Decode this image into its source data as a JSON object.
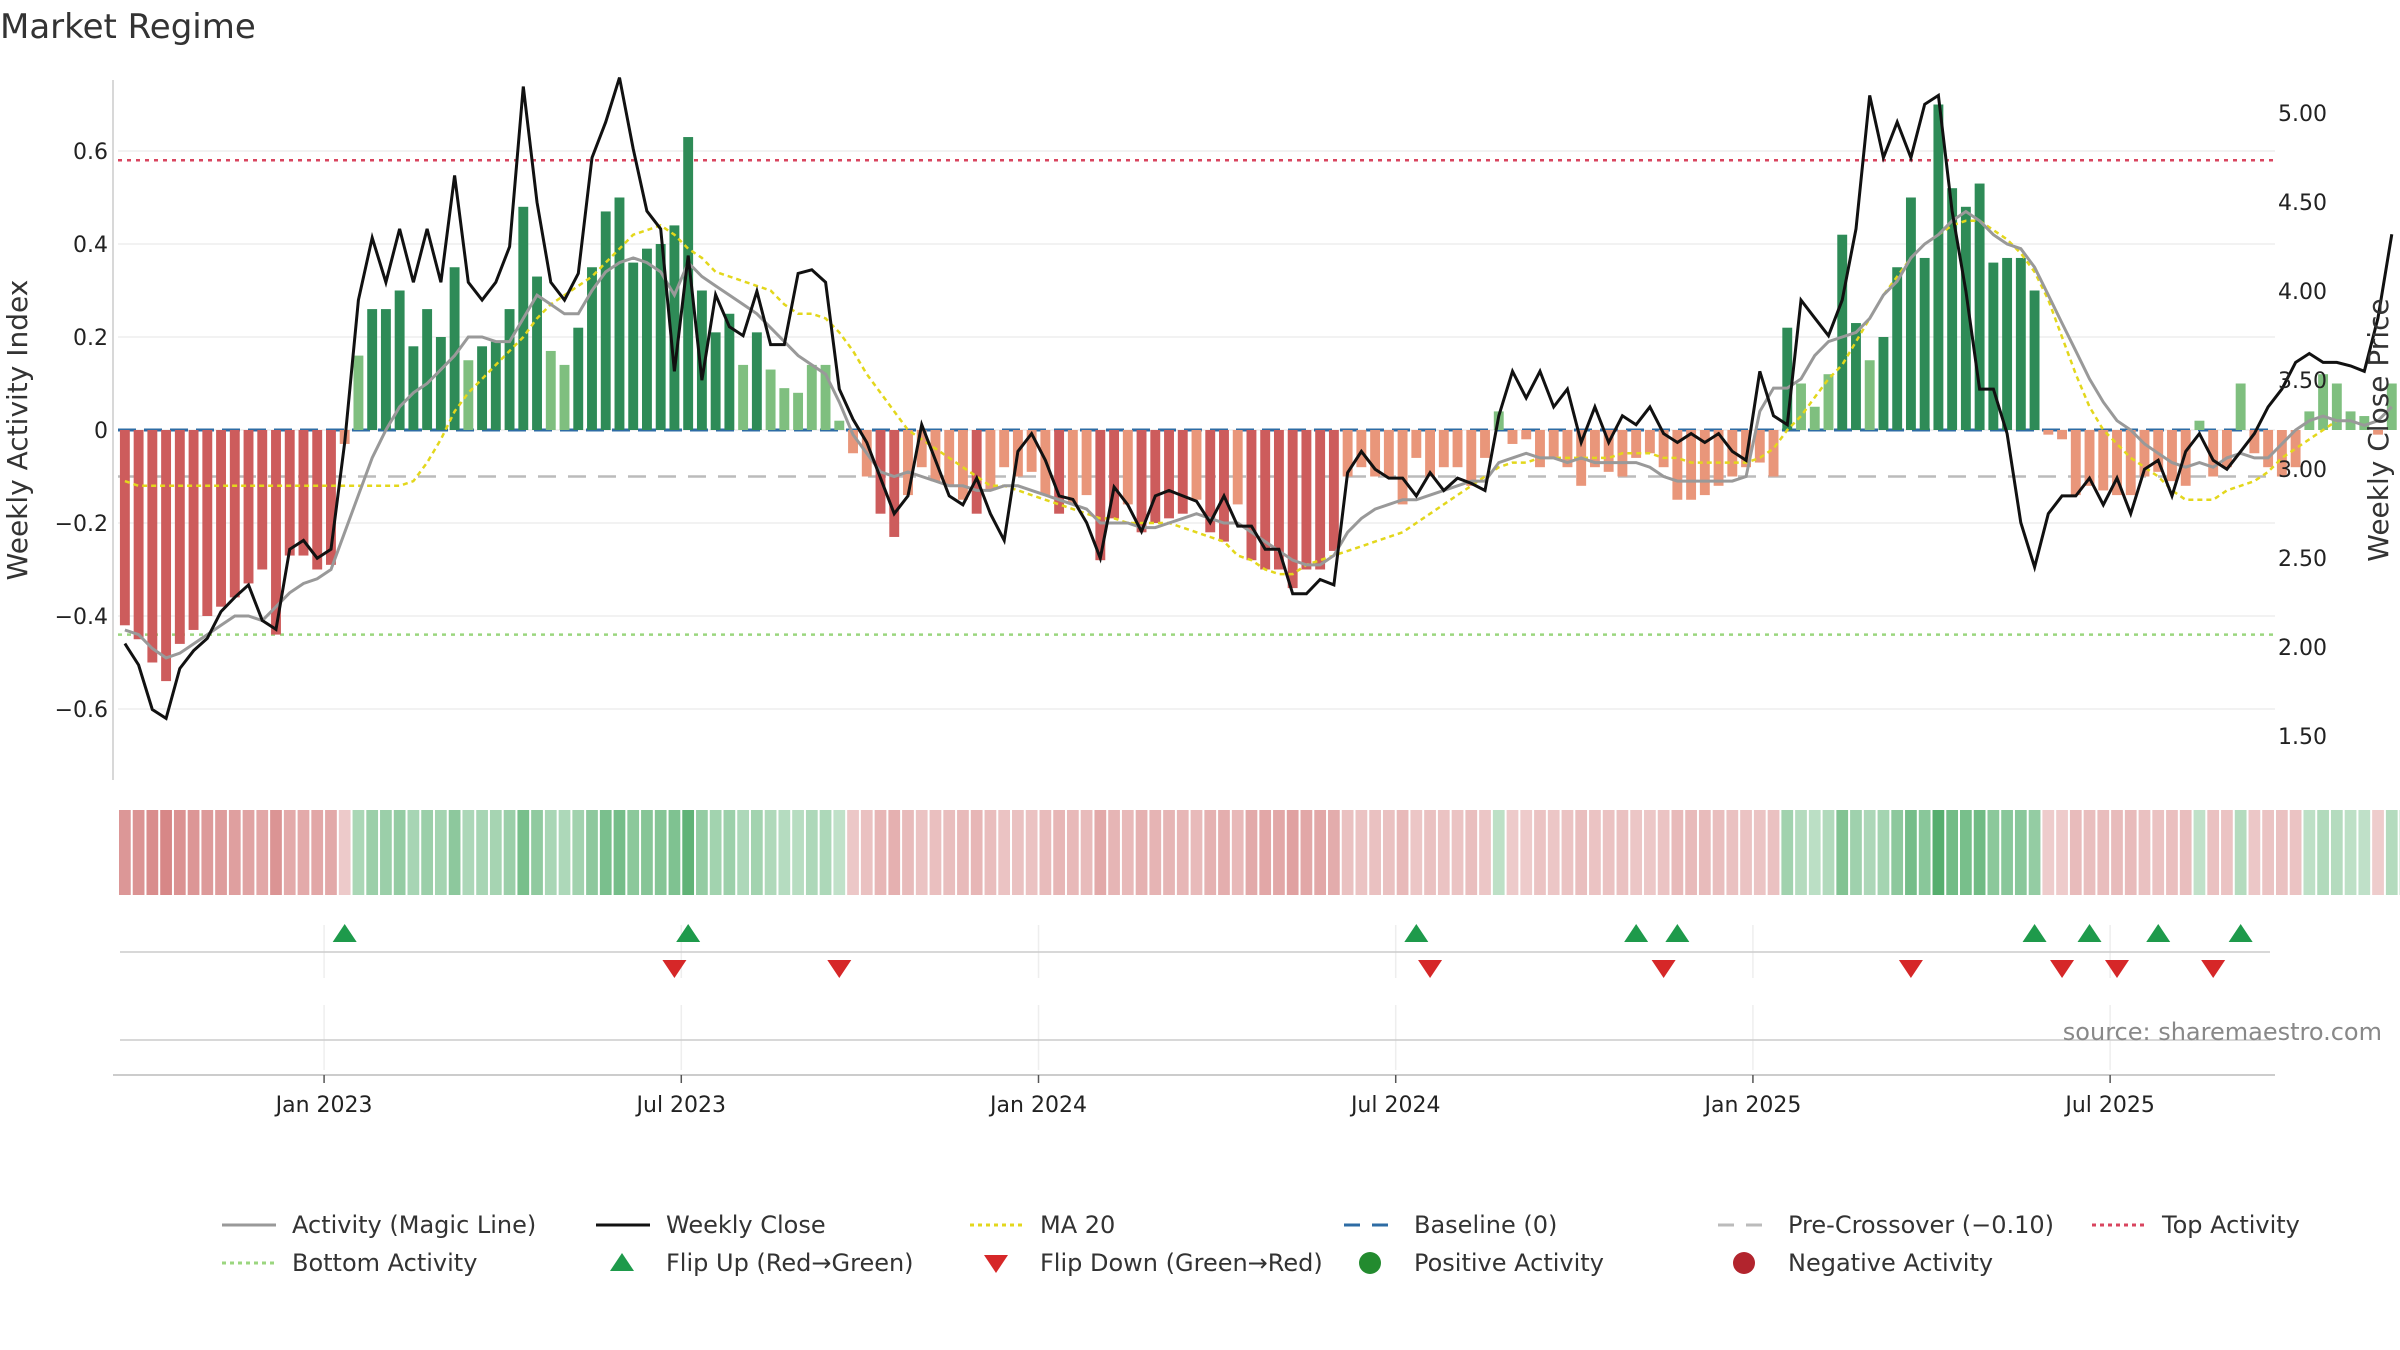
{
  "chart_data": {
    "type": "bar",
    "title": "Market Regime",
    "ylabel_left": "Weekly Activity Index",
    "ylabel_right": "Weekly Close Price",
    "source": "source: sharemaestro.com",
    "grid": true,
    "legend_position": "bottom",
    "ylim_left": [
      -0.75,
      0.75
    ],
    "ylim_right": [
      1.5,
      5.25
    ],
    "yticks_left": [
      {
        "v": 0.6,
        "label": "0.6"
      },
      {
        "v": 0.4,
        "label": "0.4"
      },
      {
        "v": 0.2,
        "label": "0.2"
      },
      {
        "v": 0,
        "label": "0"
      },
      {
        "v": -0.2,
        "label": "−0.2"
      },
      {
        "v": -0.4,
        "label": "−0.4"
      },
      {
        "v": -0.6,
        "label": "−0.6"
      }
    ],
    "yticks_right": [
      {
        "v": 5.0,
        "label": "5.00"
      },
      {
        "v": 4.5,
        "label": "4.50"
      },
      {
        "v": 4.0,
        "label": "4.00"
      },
      {
        "v": 3.5,
        "label": "3.50"
      },
      {
        "v": 3.0,
        "label": "3.00"
      },
      {
        "v": 2.5,
        "label": "2.50"
      },
      {
        "v": 2.0,
        "label": "2.00"
      },
      {
        "v": 1.5,
        "label": "1.50"
      }
    ],
    "x_start_week": 0,
    "weeks": 157,
    "x_ticks": [
      {
        "week": 14.5,
        "label": "Jan 2023"
      },
      {
        "week": 40.5,
        "label": "Jul 2023"
      },
      {
        "week": 66.5,
        "label": "Jan 2024"
      },
      {
        "week": 92.5,
        "label": "Jul 2024"
      },
      {
        "week": 118.5,
        "label": "Jan 2025"
      },
      {
        "week": 144.5,
        "label": "Jul 2025"
      }
    ],
    "activity": [
      -0.42,
      -0.45,
      -0.5,
      -0.54,
      -0.46,
      -0.43,
      -0.4,
      -0.38,
      -0.36,
      -0.33,
      -0.3,
      -0.44,
      -0.27,
      -0.27,
      -0.3,
      -0.29,
      -0.03,
      0.16,
      0.26,
      0.26,
      0.3,
      0.18,
      0.26,
      0.2,
      0.35,
      0.15,
      0.18,
      0.19,
      0.26,
      0.48,
      0.33,
      0.17,
      0.14,
      0.22,
      0.35,
      0.47,
      0.5,
      0.36,
      0.39,
      0.4,
      0.44,
      0.63,
      0.3,
      0.21,
      0.25,
      0.14,
      0.21,
      0.13,
      0.09,
      0.08,
      0.14,
      0.14,
      0.02,
      -0.05,
      -0.1,
      -0.18,
      -0.23,
      -0.14,
      -0.08,
      -0.11,
      -0.12,
      -0.15,
      -0.18,
      -0.13,
      -0.08,
      -0.1,
      -0.09,
      -0.14,
      -0.18,
      -0.16,
      -0.14,
      -0.28,
      -0.19,
      -0.16,
      -0.22,
      -0.2,
      -0.19,
      -0.18,
      -0.15,
      -0.22,
      -0.24,
      -0.16,
      -0.28,
      -0.3,
      -0.3,
      -0.34,
      -0.3,
      -0.3,
      -0.26,
      -0.1,
      -0.08,
      -0.1,
      -0.1,
      -0.16,
      -0.06,
      -0.1,
      -0.08,
      -0.08,
      -0.12,
      -0.06,
      0.04,
      -0.03,
      -0.02,
      -0.08,
      -0.06,
      -0.08,
      -0.12,
      -0.08,
      -0.09,
      -0.1,
      -0.06,
      -0.05,
      -0.08,
      -0.15,
      -0.15,
      -0.14,
      -0.12,
      -0.1,
      -0.08,
      -0.07,
      -0.1,
      0.22,
      0.1,
      0.05,
      0.12,
      0.42,
      0.23,
      0.15,
      0.2,
      0.35,
      0.5,
      0.37,
      0.7,
      0.52,
      0.48,
      0.53,
      0.36,
      0.37,
      0.37,
      0.3,
      -0.01,
      -0.02,
      -0.14,
      -0.12,
      -0.13,
      -0.14,
      -0.14,
      -0.1,
      -0.09,
      -0.11,
      -0.12,
      0.02,
      -0.1,
      -0.08,
      0.1,
      -0.05,
      -0.08,
      -0.1,
      -0.08,
      0.04,
      0.12,
      0.1,
      0.04,
      0.03,
      -0.01,
      0.1,
      0.22
    ],
    "weekly_close": [
      2.02,
      1.9,
      1.65,
      1.6,
      1.88,
      1.98,
      2.05,
      2.2,
      2.28,
      2.35,
      2.15,
      2.1,
      2.55,
      2.6,
      2.5,
      2.55,
      3.15,
      3.95,
      4.3,
      4.05,
      4.35,
      4.05,
      4.35,
      4.05,
      4.65,
      4.05,
      3.95,
      4.05,
      4.25,
      5.15,
      4.5,
      4.05,
      3.95,
      4.1,
      4.75,
      4.95,
      5.2,
      4.8,
      4.45,
      4.35,
      3.55,
      4.2,
      3.5,
      3.98,
      3.8,
      3.75,
      4.0,
      3.7,
      3.7,
      4.1,
      4.12,
      4.05,
      3.45,
      3.28,
      3.15,
      2.95,
      2.75,
      2.85,
      3.25,
      3.05,
      2.85,
      2.8,
      2.95,
      2.75,
      2.6,
      3.1,
      3.2,
      3.05,
      2.85,
      2.83,
      2.7,
      2.5,
      2.9,
      2.8,
      2.65,
      2.85,
      2.88,
      2.85,
      2.82,
      2.7,
      2.85,
      2.68,
      2.68,
      2.55,
      2.55,
      2.3,
      2.3,
      2.38,
      2.35,
      2.98,
      3.1,
      3.0,
      2.95,
      2.95,
      2.85,
      2.98,
      2.88,
      2.95,
      2.92,
      2.88,
      3.3,
      3.55,
      3.4,
      3.55,
      3.35,
      3.45,
      3.15,
      3.35,
      3.15,
      3.3,
      3.25,
      3.35,
      3.2,
      3.15,
      3.2,
      3.15,
      3.2,
      3.1,
      3.05,
      3.55,
      3.3,
      3.25,
      3.95,
      3.85,
      3.75,
      3.95,
      4.35,
      5.1,
      4.75,
      4.95,
      4.75,
      5.05,
      5.1,
      4.45,
      4.0,
      3.45,
      3.45,
      3.2,
      2.7,
      2.45,
      2.75,
      2.85,
      2.85,
      2.95,
      2.8,
      2.95,
      2.75,
      3.0,
      3.05,
      2.85,
      3.1,
      3.2,
      3.05,
      3.0,
      3.1,
      3.2,
      3.35,
      3.45,
      3.6,
      3.65,
      3.6,
      3.6,
      3.58,
      3.55,
      3.85,
      4.32
    ],
    "magic_line": [
      -0.43,
      -0.44,
      -0.47,
      -0.49,
      -0.48,
      -0.46,
      -0.44,
      -0.42,
      -0.4,
      -0.4,
      -0.41,
      -0.38,
      -0.35,
      -0.33,
      -0.32,
      -0.3,
      -0.22,
      -0.14,
      -0.06,
      0.0,
      0.05,
      0.08,
      0.1,
      0.13,
      0.16,
      0.2,
      0.2,
      0.19,
      0.19,
      0.24,
      0.29,
      0.27,
      0.25,
      0.25,
      0.3,
      0.34,
      0.36,
      0.37,
      0.36,
      0.34,
      0.29,
      0.36,
      0.33,
      0.31,
      0.29,
      0.27,
      0.25,
      0.22,
      0.19,
      0.16,
      0.14,
      0.12,
      0.06,
      -0.01,
      -0.05,
      -0.09,
      -0.1,
      -0.09,
      -0.1,
      -0.11,
      -0.12,
      -0.12,
      -0.13,
      -0.13,
      -0.12,
      -0.12,
      -0.13,
      -0.14,
      -0.15,
      -0.16,
      -0.17,
      -0.2,
      -0.2,
      -0.2,
      -0.21,
      -0.21,
      -0.2,
      -0.19,
      -0.18,
      -0.19,
      -0.2,
      -0.2,
      -0.22,
      -0.24,
      -0.26,
      -0.28,
      -0.29,
      -0.29,
      -0.27,
      -0.22,
      -0.19,
      -0.17,
      -0.16,
      -0.15,
      -0.15,
      -0.14,
      -0.13,
      -0.12,
      -0.11,
      -0.11,
      -0.07,
      -0.06,
      -0.05,
      -0.06,
      -0.06,
      -0.07,
      -0.06,
      -0.07,
      -0.07,
      -0.07,
      -0.07,
      -0.08,
      -0.1,
      -0.11,
      -0.11,
      -0.11,
      -0.11,
      -0.11,
      -0.1,
      0.04,
      0.09,
      0.09,
      0.11,
      0.16,
      0.19,
      0.2,
      0.21,
      0.24,
      0.29,
      0.32,
      0.37,
      0.4,
      0.42,
      0.45,
      0.47,
      0.45,
      0.42,
      0.4,
      0.39,
      0.35,
      0.29,
      0.23,
      0.17,
      0.11,
      0.06,
      0.02,
      0.0,
      -0.03,
      -0.05,
      -0.07,
      -0.08,
      -0.07,
      -0.08,
      -0.06,
      -0.05,
      -0.06,
      -0.06,
      -0.03,
      0.0,
      0.02,
      0.03,
      0.02,
      0.02,
      0.01,
      0.02,
      0.05
    ],
    "ma20": [
      -0.11,
      -0.12,
      -0.12,
      -0.12,
      -0.12,
      -0.12,
      -0.12,
      -0.12,
      -0.12,
      -0.12,
      -0.12,
      -0.12,
      -0.12,
      -0.12,
      -0.12,
      -0.12,
      -0.12,
      -0.12,
      -0.12,
      -0.12,
      -0.12,
      -0.11,
      -0.07,
      -0.02,
      0.04,
      0.08,
      0.11,
      0.14,
      0.17,
      0.2,
      0.24,
      0.27,
      0.29,
      0.31,
      0.33,
      0.36,
      0.39,
      0.42,
      0.43,
      0.44,
      0.42,
      0.39,
      0.37,
      0.34,
      0.33,
      0.32,
      0.31,
      0.3,
      0.27,
      0.25,
      0.25,
      0.24,
      0.21,
      0.17,
      0.12,
      0.08,
      0.04,
      0.0,
      -0.02,
      -0.04,
      -0.06,
      -0.08,
      -0.1,
      -0.12,
      -0.12,
      -0.13,
      -0.14,
      -0.15,
      -0.16,
      -0.17,
      -0.18,
      -0.19,
      -0.19,
      -0.2,
      -0.2,
      -0.2,
      -0.2,
      -0.21,
      -0.22,
      -0.23,
      -0.24,
      -0.27,
      -0.28,
      -0.3,
      -0.31,
      -0.31,
      -0.29,
      -0.28,
      -0.27,
      -0.26,
      -0.25,
      -0.24,
      -0.23,
      -0.22,
      -0.2,
      -0.18,
      -0.16,
      -0.14,
      -0.12,
      -0.1,
      -0.08,
      -0.07,
      -0.07,
      -0.06,
      -0.06,
      -0.06,
      -0.06,
      -0.06,
      -0.06,
      -0.05,
      -0.05,
      -0.05,
      -0.06,
      -0.06,
      -0.07,
      -0.07,
      -0.07,
      -0.07,
      -0.07,
      -0.06,
      -0.04,
      0.0,
      0.03,
      0.07,
      0.11,
      0.14,
      0.19,
      0.24,
      0.29,
      0.33,
      0.37,
      0.4,
      0.42,
      0.44,
      0.45,
      0.45,
      0.43,
      0.41,
      0.38,
      0.34,
      0.28,
      0.2,
      0.12,
      0.05,
      0.0,
      -0.03,
      -0.06,
      -0.08,
      -0.1,
      -0.13,
      -0.15,
      -0.15,
      -0.15,
      -0.13,
      -0.12,
      -0.11,
      -0.09,
      -0.06,
      -0.04,
      -0.02,
      0.0,
      0.02
    ],
    "series": [
      {
        "name": "Activity (Magic Line)",
        "color": "#999999"
      },
      {
        "name": "Weekly Close",
        "color": "#111111"
      },
      {
        "name": "MA 20",
        "color": "#e3d71c"
      },
      {
        "name": "Baseline (0)",
        "color": "#2e6ca4"
      },
      {
        "name": "Pre-Crossover (−0.10)",
        "color": "#bbbbbb",
        "value": -0.1
      },
      {
        "name": "Top Activity",
        "color": "#d9455f",
        "value": 0.58
      },
      {
        "name": "Bottom Activity",
        "color": "#9bd67f",
        "value": -0.44
      }
    ],
    "flip_up_weeks": [
      16,
      41,
      94,
      110,
      113,
      139,
      143,
      148,
      154
    ],
    "flip_down_weeks": [
      40,
      52,
      95,
      112,
      130,
      141,
      145,
      152
    ],
    "legend": [
      {
        "label": "Activity (Magic Line)",
        "type": "line-solid",
        "color": "#999999"
      },
      {
        "label": "Weekly Close",
        "type": "line-solid",
        "color": "#111111"
      },
      {
        "label": "MA 20",
        "type": "line-dotted",
        "color": "#e3d71c"
      },
      {
        "label": "Baseline (0)",
        "type": "line-dashed",
        "color": "#2e6ca4"
      },
      {
        "label": "Pre-Crossover (−0.10)",
        "type": "line-dashed",
        "color": "#bbbbbb"
      },
      {
        "label": "Top Activity",
        "type": "line-dotted",
        "color": "#d9455f"
      },
      {
        "label": "Bottom Activity",
        "type": "line-dotted",
        "color": "#9bd67f"
      },
      {
        "label": "Flip Up (Red→Green)",
        "type": "triangle-up",
        "color": "#1e9a4b"
      },
      {
        "label": "Flip Down (Green→Red)",
        "type": "triangle-down",
        "color": "#d62728"
      },
      {
        "label": "Positive Activity",
        "type": "dot",
        "color": "#238b2f"
      },
      {
        "label": "Negative Activity",
        "type": "dot",
        "color": "#b2242d"
      }
    ],
    "colors": {
      "pos_dark": "#2e8b57",
      "pos_light": "#7fbf7f",
      "neg_dark": "#cd5c5c",
      "neg_light": "#e9967a"
    }
  }
}
